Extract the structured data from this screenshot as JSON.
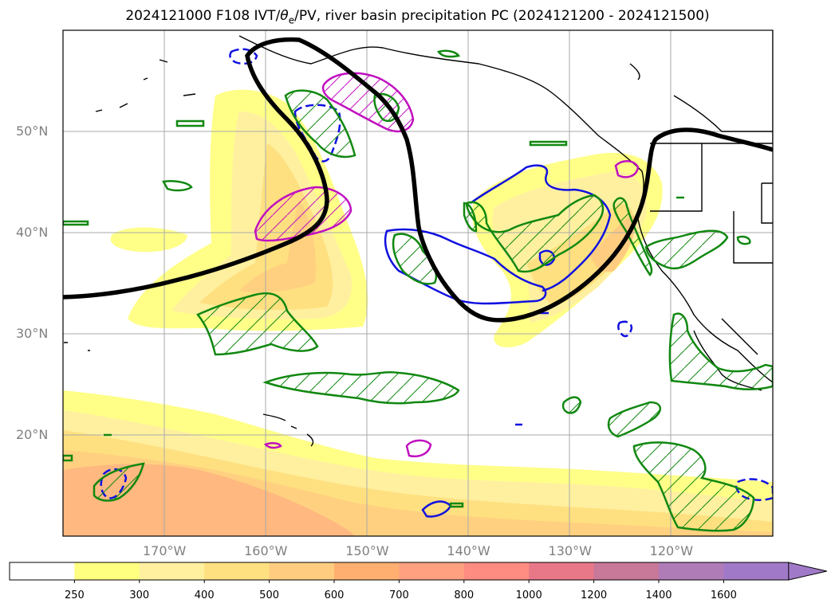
{
  "title": {
    "prefix": "2024121000 F108 IVT/",
    "theta": "θ",
    "theta_sub": "e",
    "suffix": "/PV, river basin precipitation PC (2024121200 - 2024121500)"
  },
  "map": {
    "type": "map",
    "projection": "PlateCarree",
    "lon_range": [
      -180,
      -110
    ],
    "lat_range": [
      10,
      60
    ],
    "lat_ticks": [
      {
        "value": 50,
        "label": "50°N"
      },
      {
        "value": 40,
        "label": "40°N"
      },
      {
        "value": 30,
        "label": "30°N"
      },
      {
        "value": 20,
        "label": "20°N"
      }
    ],
    "lon_ticks": [
      {
        "value": -170,
        "label": "170°W"
      },
      {
        "value": -160,
        "label": "160°W"
      },
      {
        "value": -150,
        "label": "150°W"
      },
      {
        "value": -140,
        "label": "140°W"
      },
      {
        "value": -130,
        "label": "130°W"
      },
      {
        "value": -120,
        "label": "120°W"
      }
    ],
    "gridlines": true,
    "colors": {
      "coastline": "#000000",
      "pv_contour": "#000000",
      "green_contour": "#118811",
      "blue_contour": "#1010e0",
      "magenta_contour": "#c010c0",
      "gridline": "#aaaaaa"
    }
  },
  "colorbar": {
    "extend": "max",
    "levels": [
      250,
      300,
      400,
      500,
      600,
      700,
      800,
      1000,
      1200,
      1400,
      1600
    ],
    "colors": [
      "#ffffff",
      "#ffff80",
      "#fff0a0",
      "#ffe080",
      "#ffcc80",
      "#ffb070",
      "#ffa080",
      "#ff8c80",
      "#e87888",
      "#c87898",
      "#b07cb8",
      "#a07ac8"
    ],
    "labels": [
      "250",
      "300",
      "400",
      "500",
      "600",
      "700",
      "800",
      "1000",
      "1200",
      "1400",
      "1600"
    ]
  }
}
